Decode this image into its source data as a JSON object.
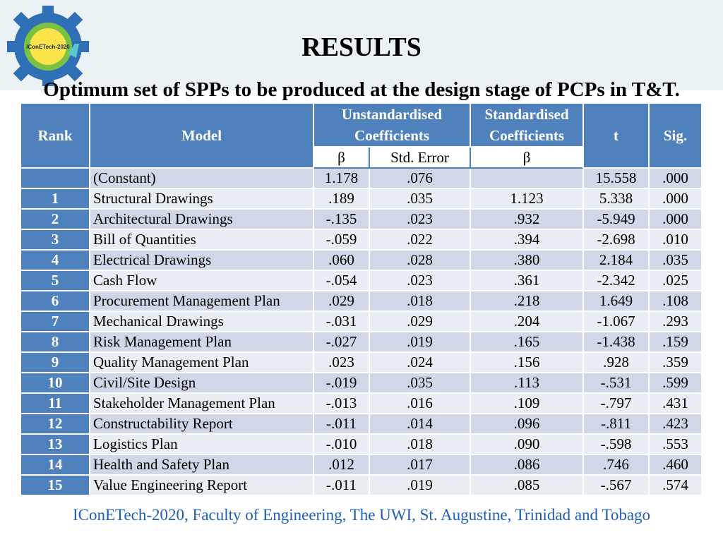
{
  "logo": {
    "text": "IConETech-2020"
  },
  "title": "RESULTS",
  "subtitle": "Optimum set of SPPs to be produced at the design stage of PCPs in T&T.",
  "table": {
    "headers": {
      "rank": "Rank",
      "model": "Model",
      "unstd": "Unstandardised Coefficients",
      "std": "Standardised Coefficients",
      "t": "t",
      "sig": "Sig.",
      "beta1": "β",
      "stderr": "Std. Error",
      "beta2": "β"
    },
    "rows": [
      {
        "rank": "",
        "model": "(Constant)",
        "b": "1.178",
        "se": ".076",
        "beta": "",
        "t": "15.558",
        "sig": ".000"
      },
      {
        "rank": "1",
        "model": "Structural Drawings",
        "b": ".189",
        "se": ".035",
        "beta": "1.123",
        "t": "5.338",
        "sig": ".000"
      },
      {
        "rank": "2",
        "model": "Architectural Drawings",
        "b": "-.135",
        "se": ".023",
        "beta": ".932",
        "t": "-5.949",
        "sig": ".000"
      },
      {
        "rank": "3",
        "model": "Bill of Quantities",
        "b": "-.059",
        "se": ".022",
        "beta": ".394",
        "t": "-2.698",
        "sig": ".010"
      },
      {
        "rank": "4",
        "model": "Electrical Drawings",
        "b": ".060",
        "se": ".028",
        "beta": ".380",
        "t": "2.184",
        "sig": ".035"
      },
      {
        "rank": "5",
        "model": "Cash Flow",
        "b": "-.054",
        "se": ".023",
        "beta": ".361",
        "t": "-2.342",
        "sig": ".025"
      },
      {
        "rank": "6",
        "model": "Procurement Management Plan",
        "b": ".029",
        "se": ".018",
        "beta": ".218",
        "t": "1.649",
        "sig": ".108"
      },
      {
        "rank": "7",
        "model": "Mechanical Drawings",
        "b": "-.031",
        "se": ".029",
        "beta": ".204",
        "t": "-1.067",
        "sig": ".293"
      },
      {
        "rank": "8",
        "model": "Risk Management Plan",
        "b": "-.027",
        "se": ".019",
        "beta": ".165",
        "t": "-1.438",
        "sig": ".159"
      },
      {
        "rank": "9",
        "model": "Quality Management Plan",
        "b": ".023",
        "se": ".024",
        "beta": ".156",
        "t": ".928",
        "sig": ".359"
      },
      {
        "rank": "10",
        "model": "Civil/Site Design",
        "b": "-.019",
        "se": ".035",
        "beta": ".113",
        "t": "-.531",
        "sig": ".599"
      },
      {
        "rank": "11",
        "model": "Stakeholder Management Plan",
        "b": "-.013",
        "se": ".016",
        "beta": ".109",
        "t": "-.797",
        "sig": ".431"
      },
      {
        "rank": "12",
        "model": "Constructability Report",
        "b": "-.011",
        "se": ".014",
        "beta": ".096",
        "t": "-.811",
        "sig": ".423"
      },
      {
        "rank": "13",
        "model": "Logistics Plan",
        "b": "-.010",
        "se": ".018",
        "beta": ".090",
        "t": "-.598",
        "sig": ".553"
      },
      {
        "rank": "14",
        "model": "Health and Safety Plan",
        "b": ".012",
        "se": ".017",
        "beta": ".086",
        "t": ".746",
        "sig": ".460"
      },
      {
        "rank": "15",
        "model": "Value Engineering Report",
        "b": "-.011",
        "se": ".019",
        "beta": ".085",
        "t": "-.567",
        "sig": ".574"
      }
    ]
  },
  "footer": "IConETech-2020, Faculty of Engineering, The UWI, St. Augustine, Trinidad and Tobago",
  "colors": {
    "header_blue": "#4f81bd",
    "row_dark": "#d0d8e8",
    "row_light": "#e9edf4",
    "footer_text": "#1f5fb5",
    "banner": "#eaf2f5"
  }
}
